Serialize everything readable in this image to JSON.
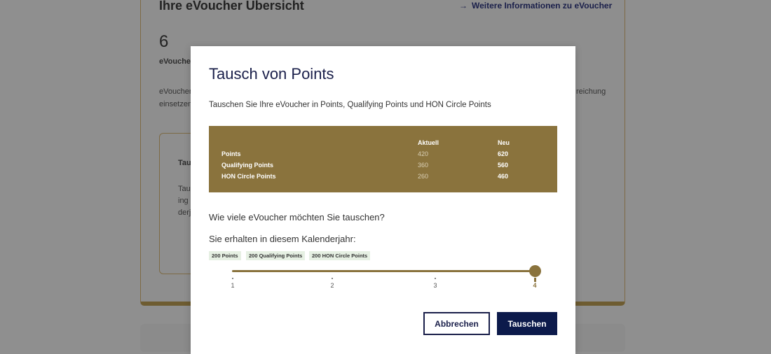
{
  "background": {
    "title": "Ihre eVoucher Übersicht",
    "info_link": "Weitere Informationen zu eVoucher",
    "count": "6",
    "count_label_fragment": "eVouche",
    "desc_fragments": [
      "eVoucher",
      "einsetzen",
      "reichung"
    ],
    "card_fragments": [
      "Tau",
      "Tau",
      "ing",
      "derj"
    ]
  },
  "modal": {
    "title": "Tausch von Points",
    "subtitle": "Tauschen Sie Ihre eVoucher in Points, Qualifying Points und HON Circle Points",
    "table": {
      "headers": [
        "Aktuell",
        "Neu"
      ],
      "rows": [
        {
          "label": "Points",
          "current": "420",
          "new": "620"
        },
        {
          "label": "Qualifying Points",
          "current": "360",
          "new": "560"
        },
        {
          "label": "HON Circle Points",
          "current": "260",
          "new": "460"
        }
      ]
    },
    "question": "Wie viele eVoucher möchten Sie tauschen?",
    "receive_label": "Sie erhalten in diesem Kalenderjahr:",
    "chips": [
      "200 Points",
      "200 Qualifying Points",
      "200 HON Circle Points"
    ],
    "slider": {
      "min": 1,
      "max": 4,
      "value": 4,
      "labels": [
        "1",
        "2",
        "3",
        "4"
      ]
    },
    "cancel_label": "Abbrechen",
    "confirm_label": "Tauschen"
  },
  "colors": {
    "accent": "#8a733d",
    "primary": "#0c1a4b",
    "chip": "#e6f0e3"
  }
}
